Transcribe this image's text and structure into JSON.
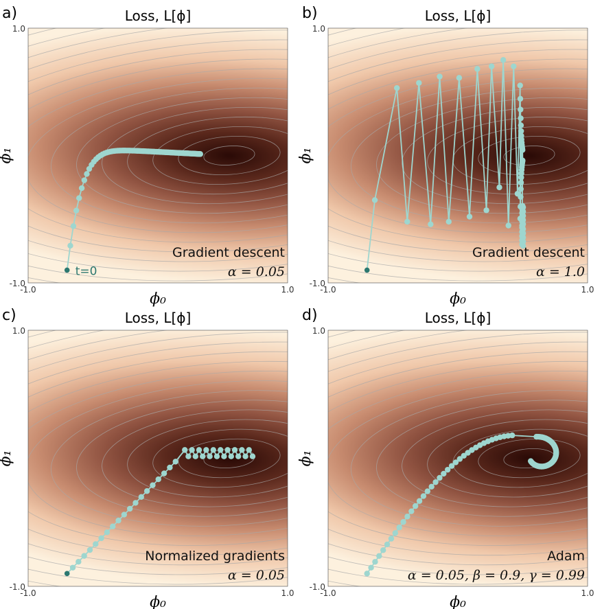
{
  "figure": {
    "title": "Loss, ",
    "title_math": "L[ϕ]",
    "colors": {
      "loss_low": "#2a0a06",
      "loss_mid": "#8a4a38",
      "loss_high": "#fdf0dc",
      "contour": "#a8a8a8",
      "path": "#9ed6cf",
      "start": "#2c7870"
    }
  },
  "chart_data": [
    {
      "type": "line",
      "panel_label": "a)",
      "title": "Loss, L[ϕ]",
      "method": "Gradient descent",
      "params": "α = 0.05",
      "xlabel": "ϕ₀",
      "ylabel": "ϕ₁",
      "xlim": [
        -1.0,
        1.0
      ],
      "ylim": [
        -1.0,
        1.0
      ],
      "x_ticks": [
        "-1.0",
        "1.0"
      ],
      "y_ticks": [
        "1.0",
        "-1.0"
      ],
      "start_label": "t=0",
      "path_generator": "gd",
      "start": [
        -0.7,
        -0.9
      ]
    },
    {
      "type": "line",
      "panel_label": "b)",
      "title": "Loss, L[ϕ]",
      "method": "Gradient descent",
      "params": "α = 1.0",
      "xlabel": "ϕ₀",
      "ylabel": "ϕ₁",
      "xlim": [
        -1.0,
        1.0
      ],
      "ylim": [
        -1.0,
        1.0
      ],
      "x_ticks": [
        "-1.0",
        "1.0"
      ],
      "y_ticks": [
        "1.0",
        "-1.0"
      ],
      "start_label": "",
      "path_generator": "gd_large",
      "start": [
        -0.7,
        -0.9
      ],
      "early_points": [
        [
          -0.7,
          -0.9
        ],
        [
          -0.64,
          -0.35
        ],
        [
          -0.47,
          0.53
        ],
        [
          -0.39,
          -0.52
        ],
        [
          -0.3,
          0.57
        ],
        [
          -0.21,
          -0.54
        ],
        [
          -0.14,
          0.62
        ],
        [
          -0.07,
          -0.52
        ],
        [
          0.01,
          0.61
        ],
        [
          0.09,
          -0.48
        ],
        [
          0.15,
          0.68
        ],
        [
          0.22,
          -0.43
        ],
        [
          0.26,
          0.7
        ],
        [
          0.32,
          -0.25
        ],
        [
          0.35,
          0.75
        ],
        [
          0.39,
          -0.55
        ],
        [
          0.43,
          0.7
        ],
        [
          0.46,
          -0.3
        ]
      ]
    },
    {
      "type": "line",
      "panel_label": "c)",
      "title": "Loss, L[ϕ]",
      "method": "Normalized gradients",
      "params": "α = 0.05",
      "xlabel": "ϕ₀",
      "ylabel": "ϕ₁",
      "xlim": [
        -1.0,
        1.0
      ],
      "ylim": [
        -1.0,
        1.0
      ],
      "x_ticks": [
        "-1.0",
        "1.0"
      ],
      "y_ticks": [
        "1.0",
        "-1.0"
      ],
      "start_label": "",
      "path_generator": "normalized",
      "start": [
        -0.7,
        -0.9
      ]
    },
    {
      "type": "line",
      "panel_label": "d)",
      "title": "Loss, L[ϕ]",
      "method": "Adam",
      "params": "α = 0.05, β = 0.9, γ = 0.99",
      "xlabel": "ϕ₀",
      "ylabel": "ϕ₁",
      "xlim": [
        -1.0,
        1.0
      ],
      "ylim": [
        -1.0,
        1.0
      ],
      "x_ticks": [
        "-1.0",
        "1.0"
      ],
      "y_ticks": [
        "1.0",
        "-1.0"
      ],
      "start_label": "",
      "path_generator": "adam",
      "start": [
        -0.7,
        -0.9
      ]
    }
  ]
}
